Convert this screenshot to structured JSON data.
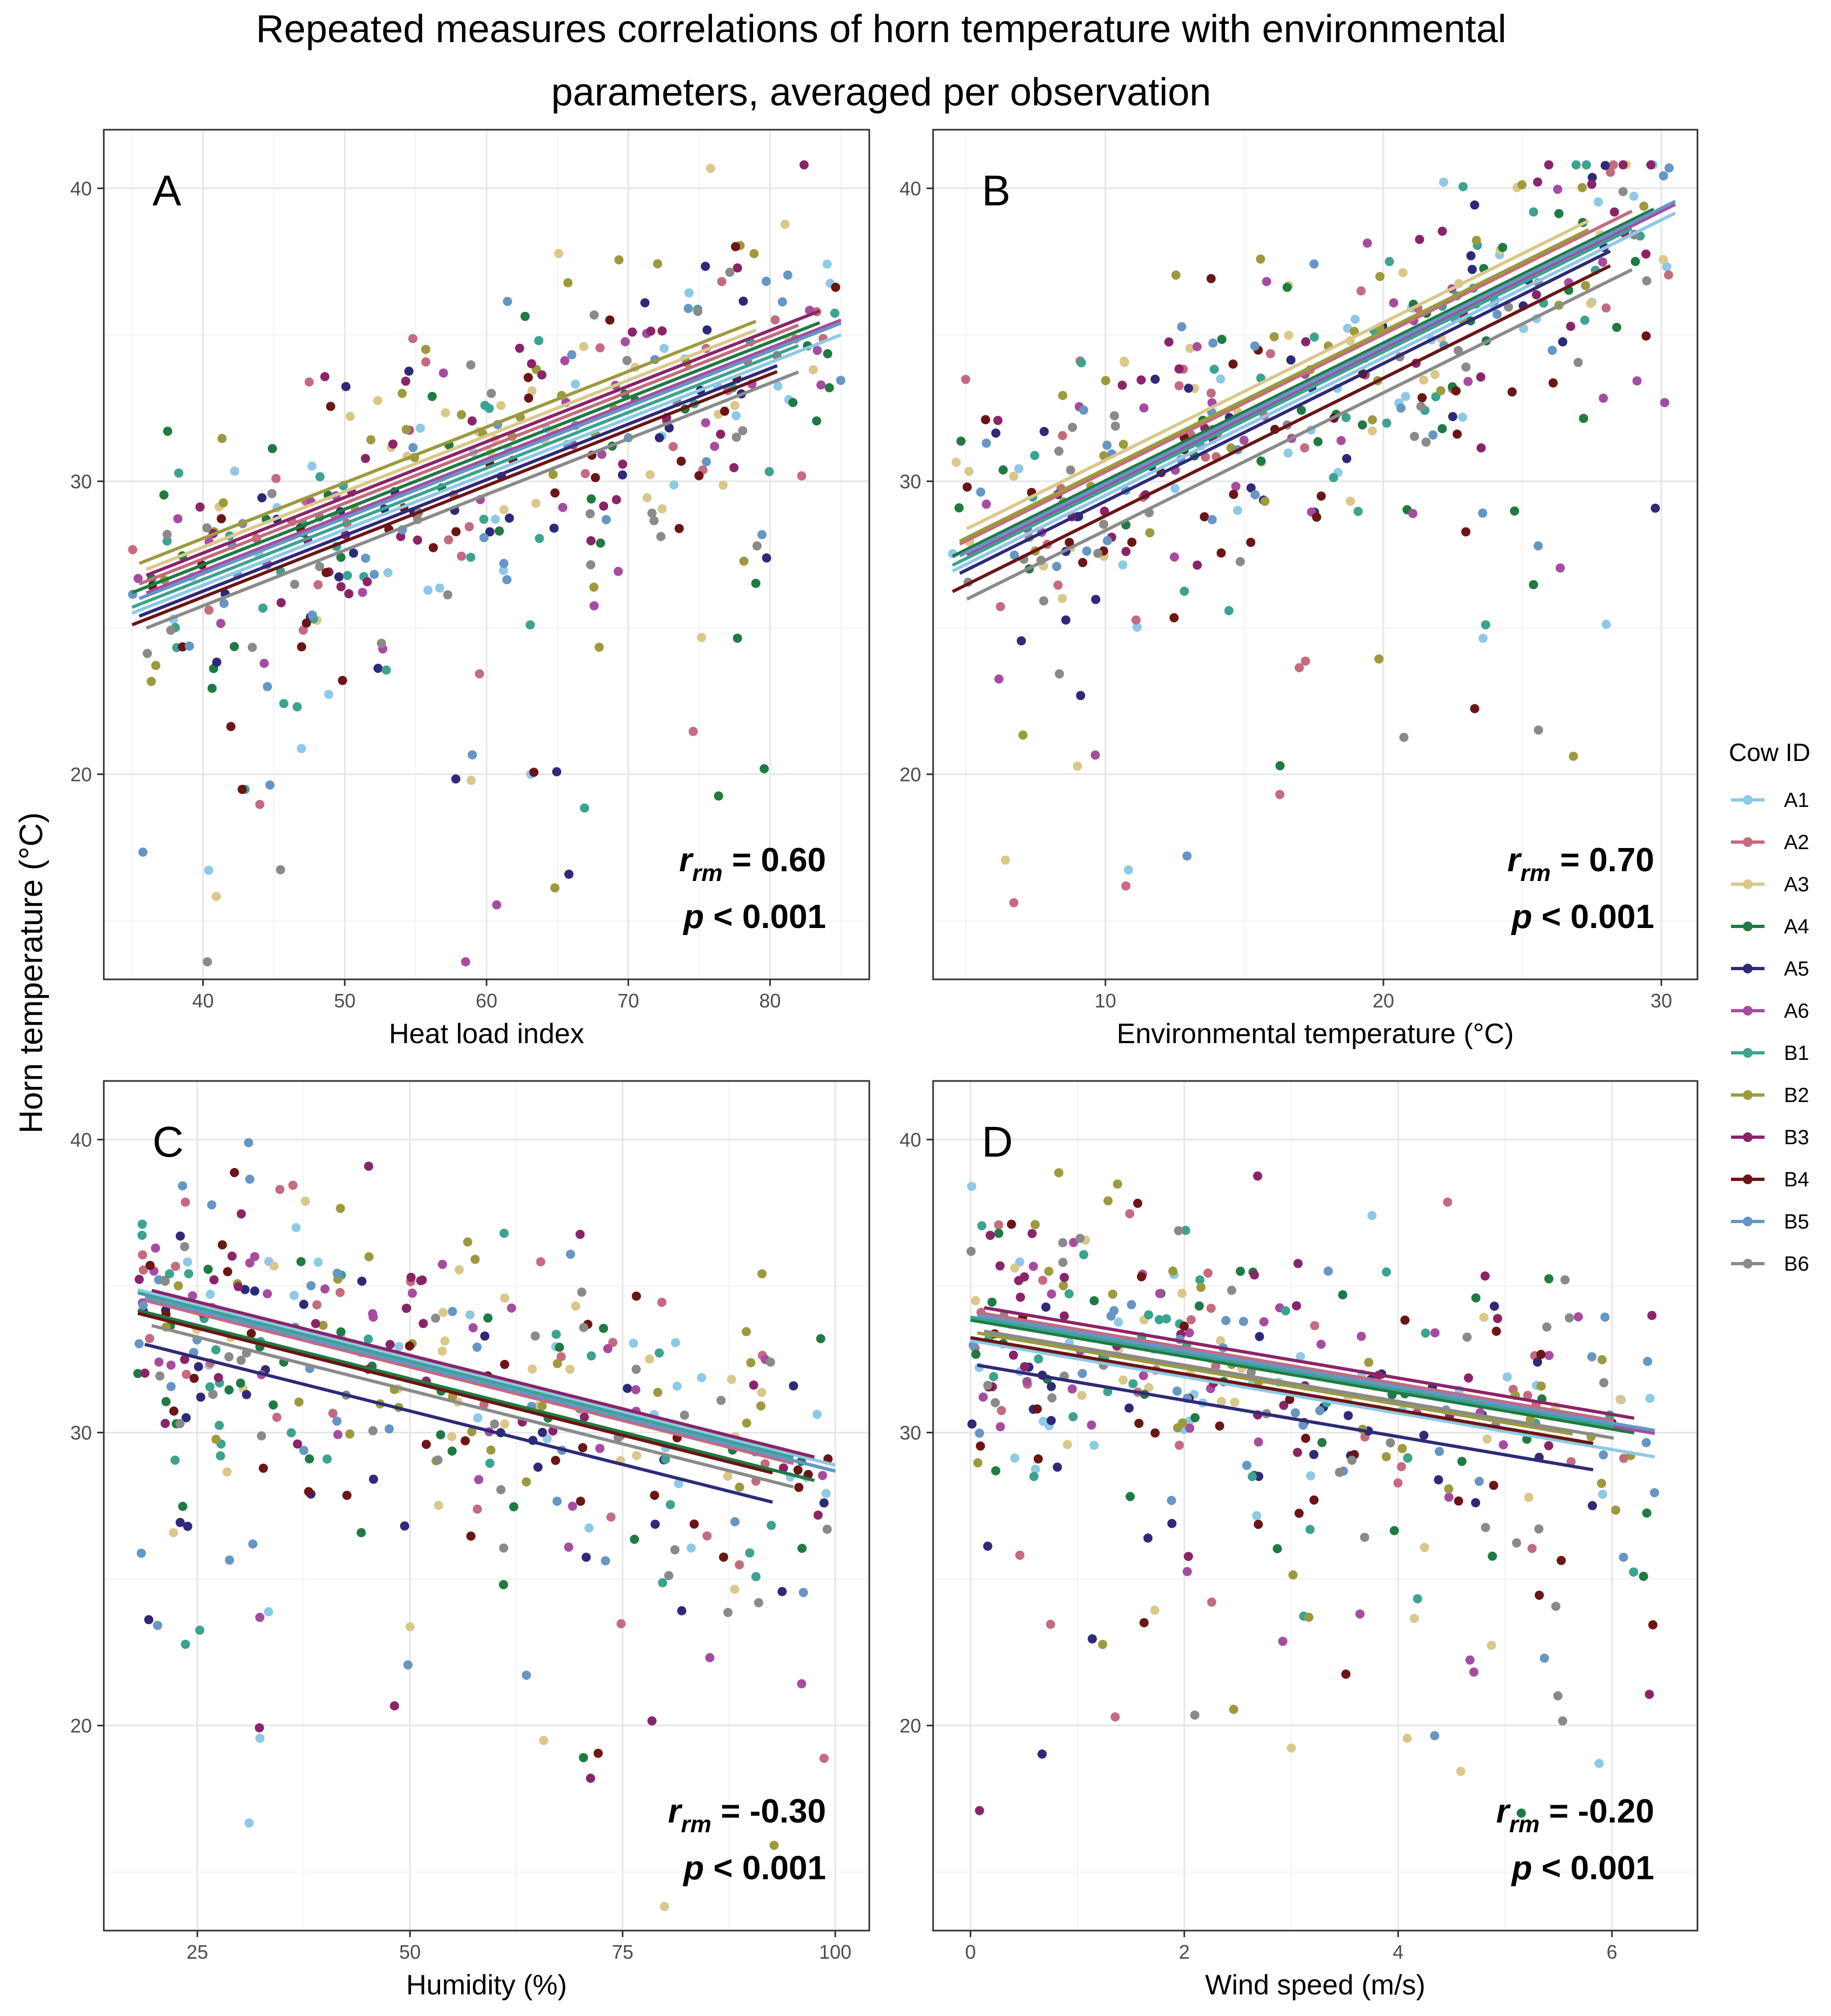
{
  "title_line1": "Repeated measures correlations of horn temperature with environmental",
  "title_line2": "parameters, averaged per observation",
  "y_axis_label": "Horn temperature (°C)",
  "legend": {
    "title": "Cow ID",
    "items": [
      {
        "id": "A1",
        "color": "#8ec9e6"
      },
      {
        "id": "A2",
        "color": "#c46b7e"
      },
      {
        "id": "A3",
        "color": "#d9c88a"
      },
      {
        "id": "A4",
        "color": "#1f7a43"
      },
      {
        "id": "A5",
        "color": "#2e2a78"
      },
      {
        "id": "A6",
        "color": "#a64ca0"
      },
      {
        "id": "B1",
        "color": "#3ba38f"
      },
      {
        "id": "B2",
        "color": "#9c9a3d"
      },
      {
        "id": "B3",
        "color": "#8a2468"
      },
      {
        "id": "B4",
        "color": "#6b1515"
      },
      {
        "id": "B5",
        "color": "#6596c4"
      },
      {
        "id": "B6",
        "color": "#8a8a8a"
      }
    ]
  },
  "chart_data": [
    {
      "type": "scatter",
      "panel": "A",
      "xlabel": "Heat load index",
      "ylabel": "Horn temperature (°C)",
      "xlim": [
        33,
        87
      ],
      "ylim": [
        13,
        42
      ],
      "xticks": [
        40,
        50,
        60,
        70,
        80
      ],
      "yticks": [
        20,
        30,
        40
      ],
      "r_label": "r",
      "r_sub": "rm",
      "r_value": " = 0.60",
      "p_label": "p",
      "p_value": " < 0.001",
      "x_min": 35,
      "x_max": 85,
      "x_center": 55,
      "slope": 0.19,
      "intercepts": [
        29.3,
        30.2,
        30.6,
        30.0,
        29.1,
        29.8,
        29.5,
        30.9,
        30.4,
        28.9,
        29.7,
        28.6
      ],
      "scatter_seed": 7
    },
    {
      "type": "scatter",
      "panel": "B",
      "xlabel": "Environmental temperature (°C)",
      "ylabel": "",
      "xlim": [
        3.8,
        31.3
      ],
      "ylim": [
        13,
        42
      ],
      "xticks": [
        10,
        20,
        30
      ],
      "yticks": [
        20,
        30,
        40
      ],
      "r_label": "r",
      "r_sub": "rm",
      "r_value": " = 0.70",
      "p_label": "p",
      "p_value": " < 0.001",
      "x_min": 4.5,
      "x_max": 30.5,
      "x_center": 14,
      "slope": 0.47,
      "intercepts": [
        31.4,
        32.2,
        32.6,
        31.9,
        31.2,
        31.7,
        31.6,
        32.3,
        31.8,
        30.7,
        31.8,
        30.2
      ],
      "scatter_seed": 19
    },
    {
      "type": "scatter",
      "panel": "C",
      "xlabel": "Humidity (%)",
      "ylabel": "",
      "xlim": [
        14,
        104
      ],
      "ylim": [
        13,
        42
      ],
      "xticks": [
        25,
        50,
        75,
        100
      ],
      "yticks": [
        20,
        30,
        40
      ],
      "r_label": "r",
      "r_sub": "rm",
      "r_value": " = -0.30",
      "p_label": "p",
      "p_value": " < 0.001",
      "x_min": 18,
      "x_max": 100,
      "x_center": 45,
      "slope": -0.073,
      "intercepts": [
        32.9,
        32.6,
        32.2,
        32.2,
        31.1,
        32.7,
        32.8,
        32.1,
        33.0,
        32.1,
        32.7,
        31.8
      ],
      "scatter_seed": 31
    },
    {
      "type": "scatter",
      "panel": "D",
      "xlabel": "Wind speed (m/s)",
      "ylabel": "",
      "xlim": [
        -0.35,
        6.8
      ],
      "ylim": [
        13,
        42
      ],
      "xticks": [
        0,
        2,
        4,
        6
      ],
      "yticks": [
        20,
        30,
        40
      ],
      "r_label": "r",
      "r_sub": "rm",
      "r_value": " = -0.20",
      "p_label": "p",
      "p_value": " < 0.001",
      "x_min": 0,
      "x_max": 6.4,
      "x_center": 2,
      "slope": -0.62,
      "intercepts": [
        31.9,
        32.9,
        32.3,
        32.6,
        31.1,
        32.7,
        32.7,
        32.2,
        33.1,
        32.0,
        32.8,
        32.3
      ],
      "scatter_seed": 47
    }
  ]
}
